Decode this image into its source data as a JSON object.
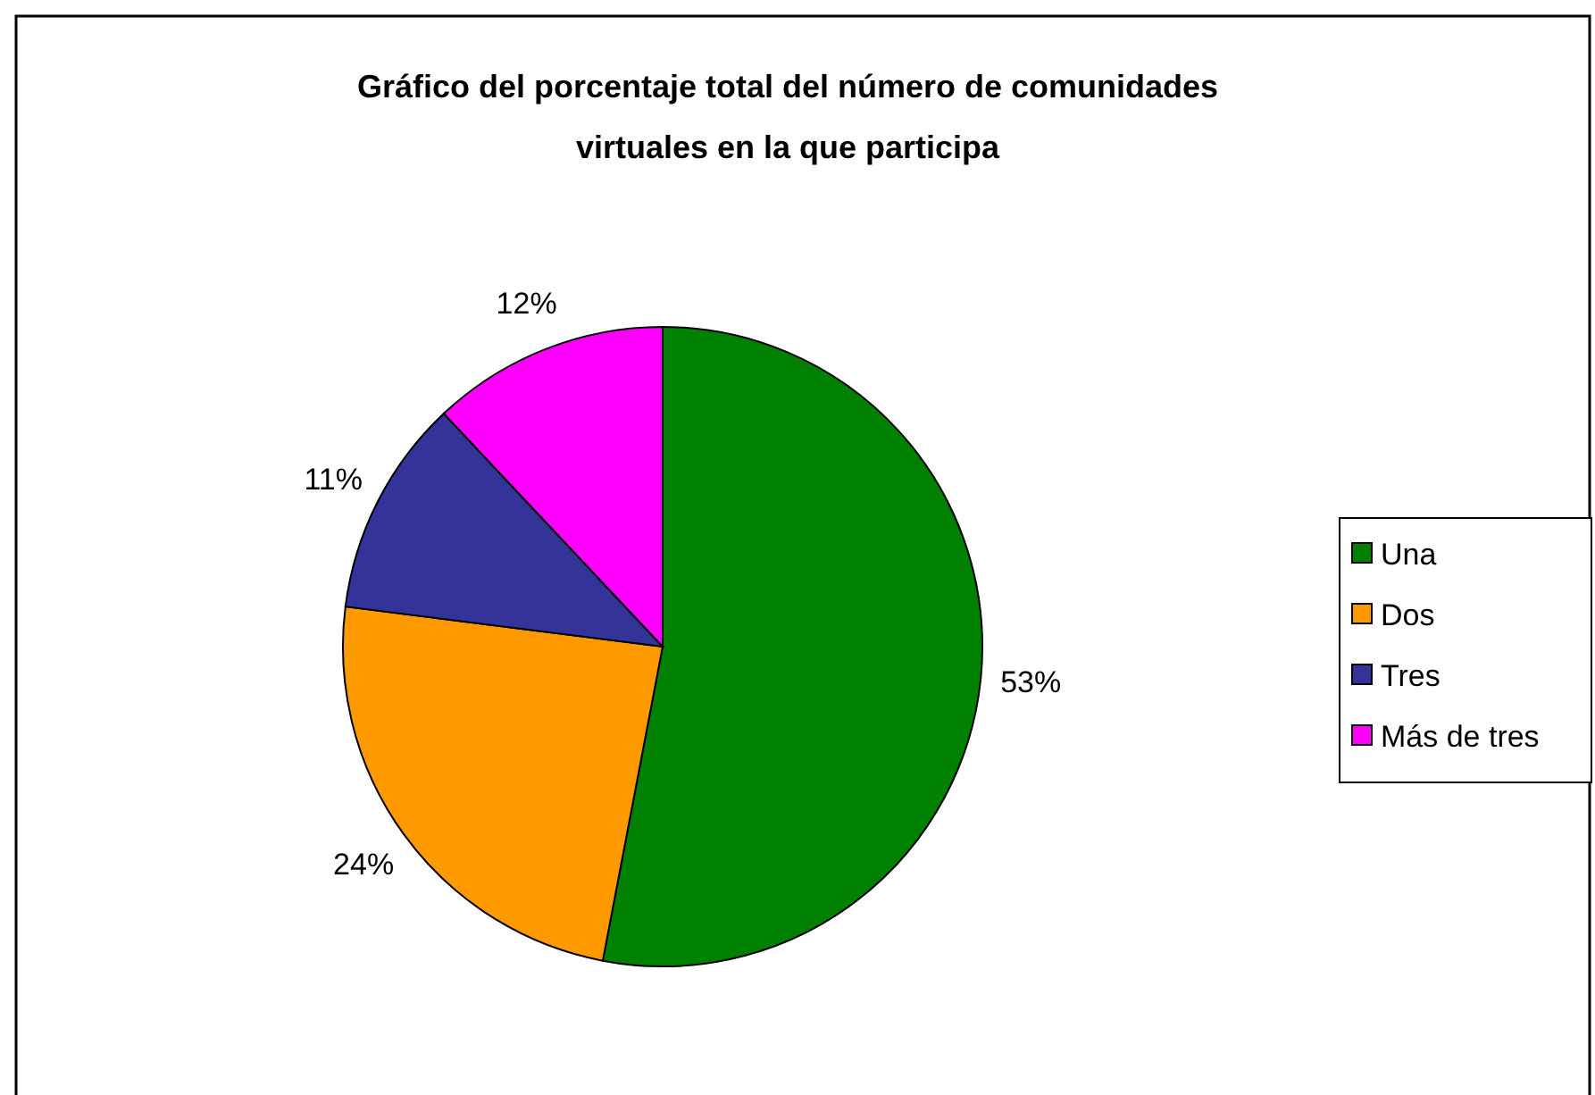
{
  "chart_data": {
    "type": "pie",
    "title": "Gráfico del porcentaje total del número de comunidades virtuales en la que participa",
    "categories": [
      "Una",
      "Dos",
      "Tres",
      "Más de tres"
    ],
    "values": [
      53,
      24,
      11,
      12
    ],
    "colors": [
      "#008000",
      "#ff9900",
      "#333399",
      "#ff00ff"
    ],
    "value_labels": [
      "53%",
      "24%",
      "11%",
      "12%"
    ],
    "legend": "right"
  }
}
